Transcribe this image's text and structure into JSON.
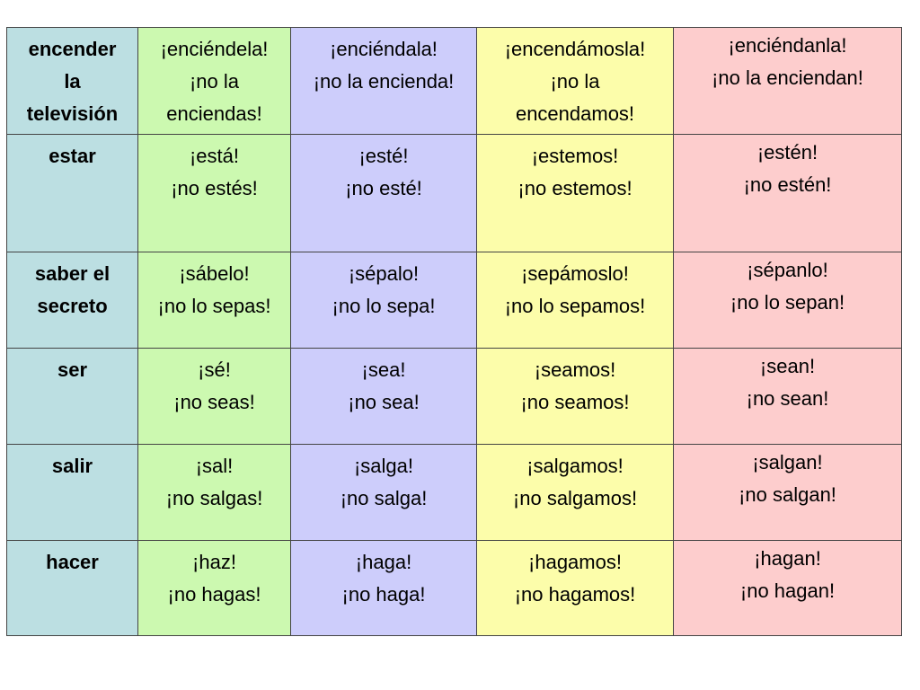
{
  "colors": {
    "verb_column": "#bcdfe2",
    "tu_column": "#ccf9b0",
    "usted_column": "#cdcdfb",
    "nosotros_column": "#fcfdaa",
    "ustedes_column": "#fdcdcd",
    "border": "#444444"
  },
  "rows": [
    {
      "verb": [
        "encender",
        "la",
        "televisión"
      ],
      "forms": [
        [
          "¡enciéndela!",
          "¡no la",
          "enciendas!"
        ],
        [
          "¡enciéndala!",
          "¡no la encienda!"
        ],
        [
          "¡encendámosla!",
          "¡no la",
          "encendamos!"
        ],
        [
          "¡enciéndanla!",
          "¡no la enciendan!"
        ]
      ]
    },
    {
      "verb": [
        "estar"
      ],
      "forms": [
        [
          "¡está!",
          "¡no estés!"
        ],
        [
          "¡esté!",
          "¡no esté!"
        ],
        [
          "¡estemos!",
          "¡no estemos!"
        ],
        [
          "¡estén!",
          "¡no estén!"
        ]
      ]
    },
    {
      "verb": [
        "saber el",
        "secreto"
      ],
      "forms": [
        [
          "¡sábelo!",
          "¡no lo sepas!"
        ],
        [
          "¡sépalo!",
          "¡no lo sepa!"
        ],
        [
          "¡sepámoslo!",
          "¡no lo sepamos!"
        ],
        [
          "¡sépanlo!",
          "¡no lo sepan!"
        ]
      ]
    },
    {
      "verb": [
        "ser"
      ],
      "forms": [
        [
          "¡sé!",
          "¡no seas!"
        ],
        [
          "¡sea!",
          "¡no sea!"
        ],
        [
          "¡seamos!",
          "¡no seamos!"
        ],
        [
          "¡sean!",
          "¡no sean!"
        ]
      ]
    },
    {
      "verb": [
        "salir"
      ],
      "forms": [
        [
          "¡sal!",
          "¡no salgas!"
        ],
        [
          "¡salga!",
          "¡no salga!"
        ],
        [
          "¡salgamos!",
          "¡no salgamos!"
        ],
        [
          "¡salgan!",
          "¡no salgan!"
        ]
      ]
    },
    {
      "verb": [
        "hacer"
      ],
      "forms": [
        [
          "¡haz!",
          "¡no hagas!"
        ],
        [
          "¡haga!",
          "¡no haga!"
        ],
        [
          "¡hagamos!",
          "¡no hagamos!"
        ],
        [
          "¡hagan!",
          "¡no hagan!"
        ]
      ]
    }
  ]
}
